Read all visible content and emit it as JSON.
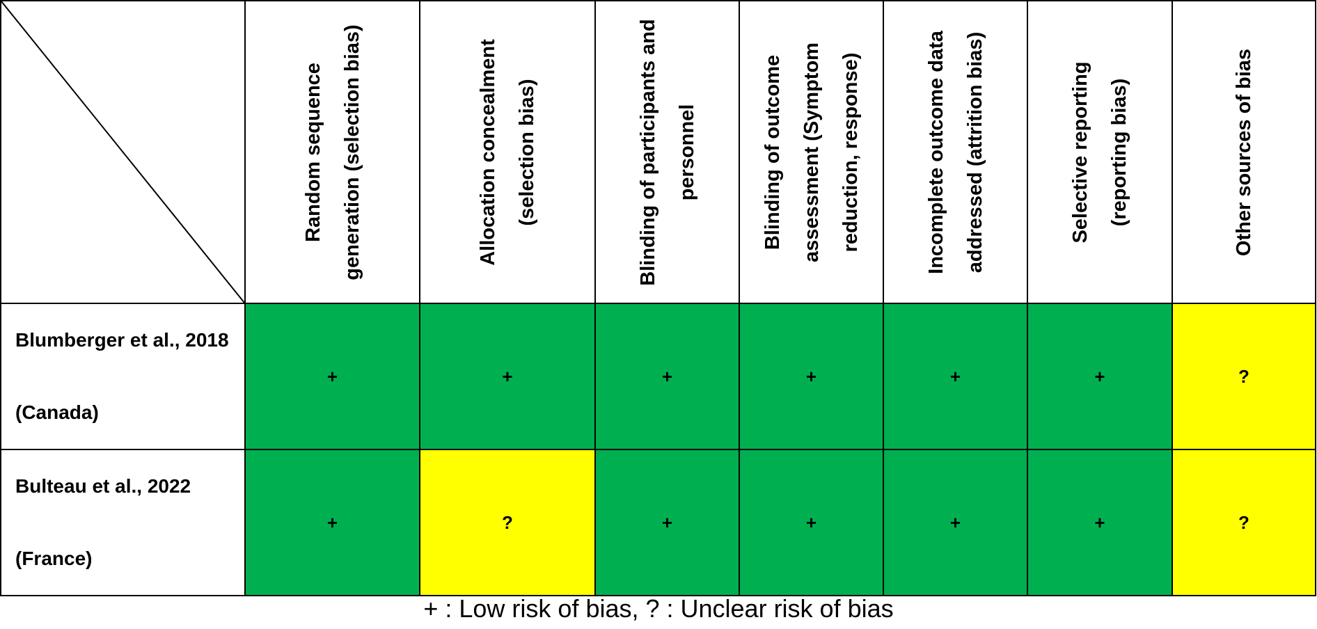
{
  "table": {
    "columns": [
      "Random sequence generation (selection bias)",
      "Allocation concealment (selection bias)",
      "Blinding of participants and personnel",
      "Blinding of outcome assessment (Symptom reduction, response)",
      "Incomplete outcome data addressed (attrition bias)",
      "Selective reporting (reporting bias)",
      "Other sources of bias"
    ],
    "rows": [
      {
        "study": "Blumberger et al., 2018 (Canada)",
        "ratings": [
          "+",
          "+",
          "+",
          "+",
          "+",
          "+",
          "?"
        ]
      },
      {
        "study": "Bulteau et al., 2022 (France)",
        "ratings": [
          "+",
          "?",
          "+",
          "+",
          "+",
          "+",
          "?"
        ]
      }
    ]
  },
  "legend": {
    "text": "+ : Low risk of bias, ? : Unclear risk of bias"
  },
  "colors": {
    "low_risk": "#00b050",
    "unclear_risk": "#ffff00",
    "border": "#000000",
    "background": "#ffffff"
  }
}
